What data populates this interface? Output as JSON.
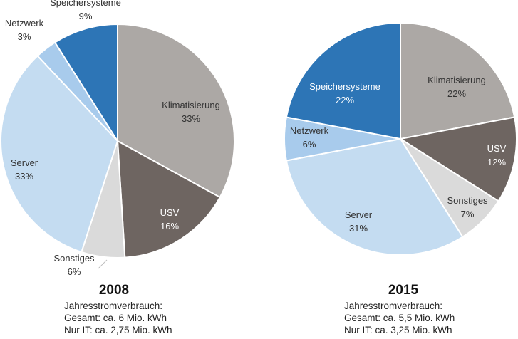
{
  "chart_data": [
    {
      "type": "pie",
      "title": "2008",
      "notes": [
        "Jahresstromverbrauch:",
        "Gesamt: ca. 6 Mio. kWh",
        "Nur IT: ca. 2,75 Mio. kWh"
      ],
      "slices": [
        {
          "name": "Klimatisierung",
          "label": "33%",
          "value": 33,
          "color": "#aca8a5"
        },
        {
          "name": "USV",
          "label": "16%",
          "value": 16,
          "color": "#6e6561"
        },
        {
          "name": "Sonstiges",
          "label": "6%",
          "value": 6,
          "color": "#dadada"
        },
        {
          "name": "Server",
          "label": "33%",
          "value": 33,
          "color": "#c4dcf1"
        },
        {
          "name": "Netzwerk",
          "label": "3%",
          "value": 3,
          "color": "#a8cbec"
        },
        {
          "name": "Speichersysteme",
          "label": "9%",
          "value": 9,
          "color": "#2d75b6"
        }
      ]
    },
    {
      "type": "pie",
      "title": "2015",
      "notes": [
        "Jahresstromverbrauch:",
        "Gesamt: ca. 5,5 Mio. kWh",
        "Nur IT: ca. 3,25 Mio. kWh"
      ],
      "slices": [
        {
          "name": "Klimatisierung",
          "label": "22%",
          "value": 22,
          "color": "#aca8a5"
        },
        {
          "name": "USV",
          "label": "12%",
          "value": 12,
          "color": "#6e6561"
        },
        {
          "name": "Sonstiges",
          "label": "7%",
          "value": 7,
          "color": "#dadada"
        },
        {
          "name": "Server",
          "label": "31%",
          "value": 31,
          "color": "#c4dcf1"
        },
        {
          "name": "Netzwerk",
          "label": "6%",
          "value": 6,
          "color": "#a8cbec"
        },
        {
          "name": "Speichersysteme",
          "label": "22%",
          "value": 22,
          "color": "#2d75b6"
        }
      ]
    }
  ]
}
